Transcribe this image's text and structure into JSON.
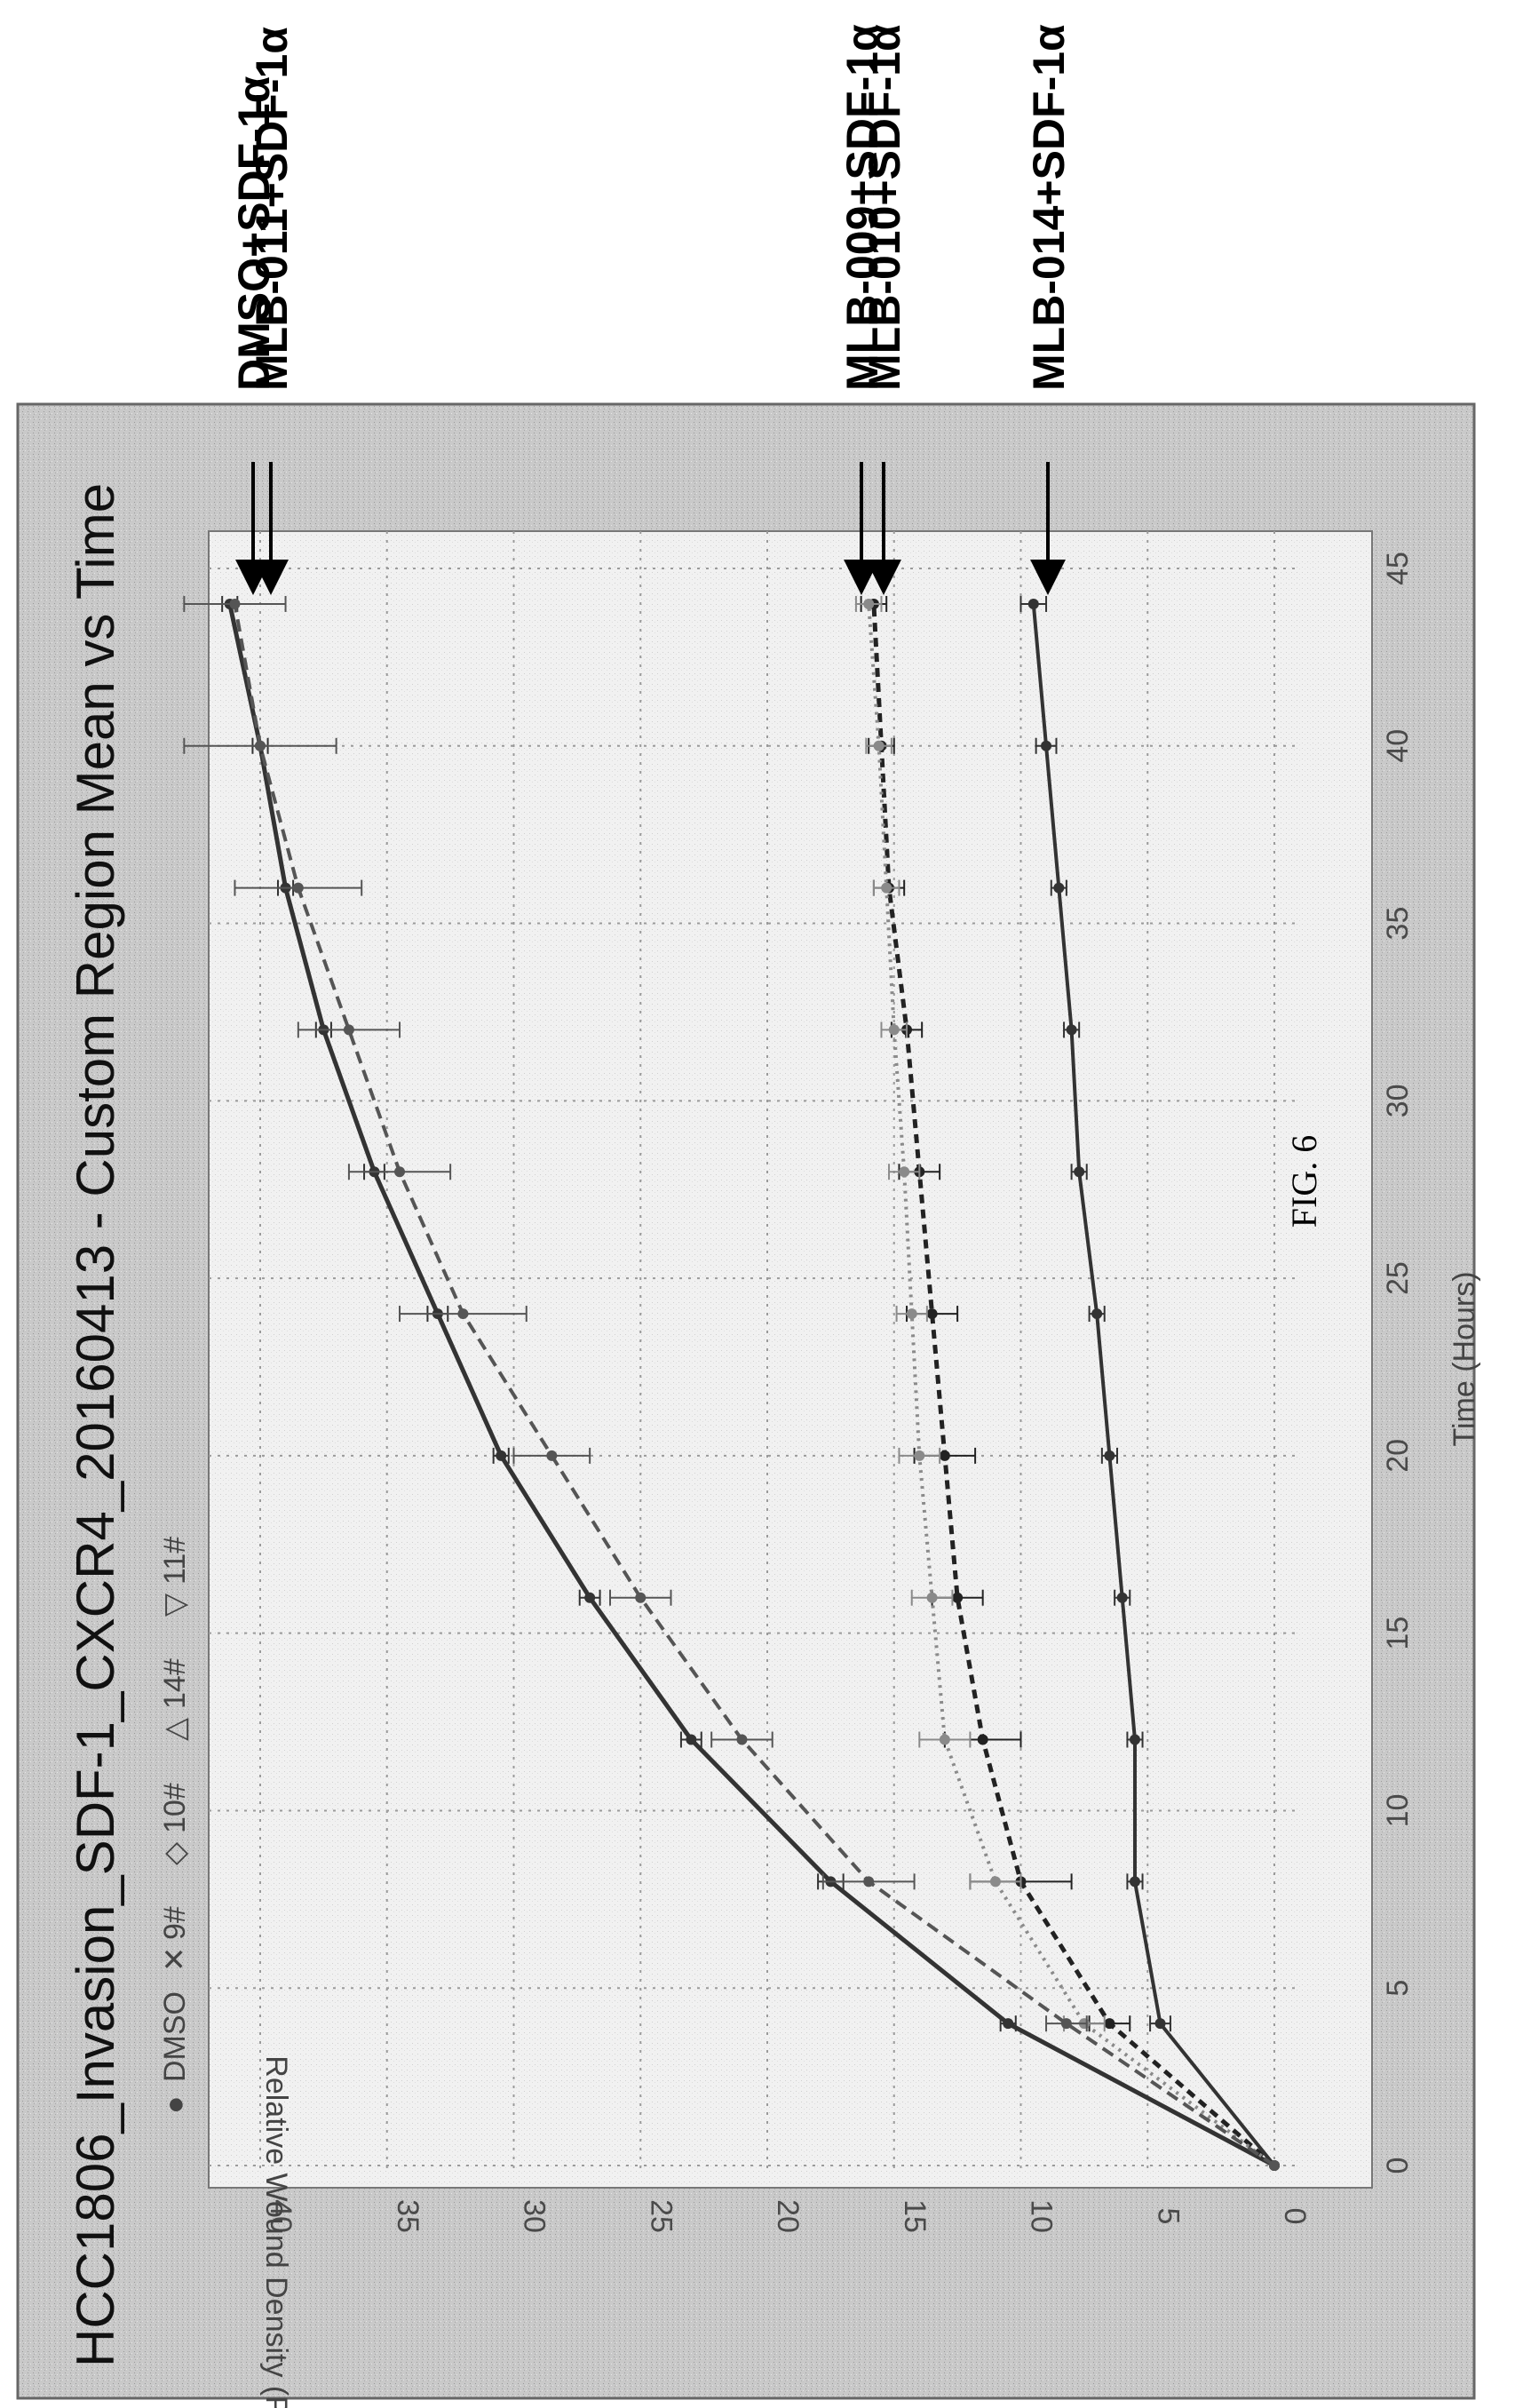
{
  "caption": "FIG. 6",
  "chart_data": {
    "type": "line",
    "title": "HCC1806_Invasion_SDF-1_CXCR4_20160413 - Custom Region Mean vs Time",
    "xlabel": "Time (Hours)",
    "ylabel": "Relative Wound Density (Percent)",
    "xlim": [
      0,
      45
    ],
    "ylim": [
      0,
      42
    ],
    "xticks": [
      0,
      5,
      10,
      15,
      20,
      25,
      30,
      35,
      40,
      45
    ],
    "yticks": [
      0,
      5,
      10,
      15,
      20,
      25,
      30,
      35,
      40
    ],
    "grid": true,
    "legend_position": "top",
    "x": [
      0,
      4,
      8,
      12,
      16,
      20,
      24,
      28,
      32,
      36,
      40,
      44
    ],
    "series": [
      {
        "name": "DMSO",
        "marker": "●",
        "values": [
          0,
          10.5,
          17.5,
          23,
          27,
          30.5,
          33,
          35.5,
          37.5,
          39,
          40,
          41.2
        ],
        "err": [
          0,
          0.3,
          0.5,
          0.4,
          0.4,
          0.3,
          0.4,
          0.4,
          0.3,
          0.3,
          0.3,
          0.3
        ],
        "color": "#333333",
        "dash": "",
        "width": 5
      },
      {
        "name": "9#",
        "marker": "✕",
        "values": [
          0,
          6.5,
          10,
          11.5,
          12.5,
          13,
          13.5,
          14,
          14.5,
          15.2,
          15.5,
          15.8
        ],
        "err": [
          0,
          0.8,
          2,
          1.5,
          1,
          1.2,
          1,
          0.8,
          0.6,
          0.6,
          0.5,
          0.5
        ],
        "color": "#222222",
        "dash": "10,7",
        "width": 5
      },
      {
        "name": "10#",
        "marker": "◇",
        "values": [
          0,
          7.5,
          11,
          13,
          13.5,
          14,
          14.3,
          14.6,
          15,
          15.3,
          15.6,
          16
        ],
        "err": [
          0,
          0.8,
          1,
          1,
          0.8,
          0.8,
          0.6,
          0.6,
          0.5,
          0.5,
          0.5,
          0.5
        ],
        "color": "#8a8a8a",
        "dash": "3,6",
        "width": 4
      },
      {
        "name": "14#",
        "marker": "△",
        "values": [
          0,
          4.5,
          5.5,
          5.5,
          6,
          6.5,
          7,
          7.7,
          8,
          8.5,
          9,
          9.5
        ],
        "err": [
          0,
          0.4,
          0.3,
          0.3,
          0.3,
          0.3,
          0.3,
          0.3,
          0.3,
          0.3,
          0.4,
          0.5
        ],
        "color": "#333333",
        "dash": "",
        "width": 4
      },
      {
        "name": "11#",
        "marker": "▽",
        "values": [
          0,
          8.2,
          16,
          21,
          25,
          28.5,
          32,
          34.5,
          36.5,
          38.5,
          40,
          41
        ],
        "err": [
          0,
          0.8,
          1.8,
          1.2,
          1.2,
          1.5,
          2.5,
          2,
          2,
          2.5,
          3,
          2
        ],
        "color": "#555555",
        "dash": "14,8",
        "width": 4
      }
    ],
    "annotations": [
      {
        "label": "DMSO+SDF-1α",
        "value": 41.5
      },
      {
        "label": "MLB-011+SDF-1α",
        "value": 41.5
      },
      {
        "label": "MLB-009+SDF-1α",
        "value": 16
      },
      {
        "label": "MLB-010+SDF-1α",
        "value": 16
      },
      {
        "label": "MLB-014+SDF-1α",
        "value": 9.5
      }
    ]
  }
}
